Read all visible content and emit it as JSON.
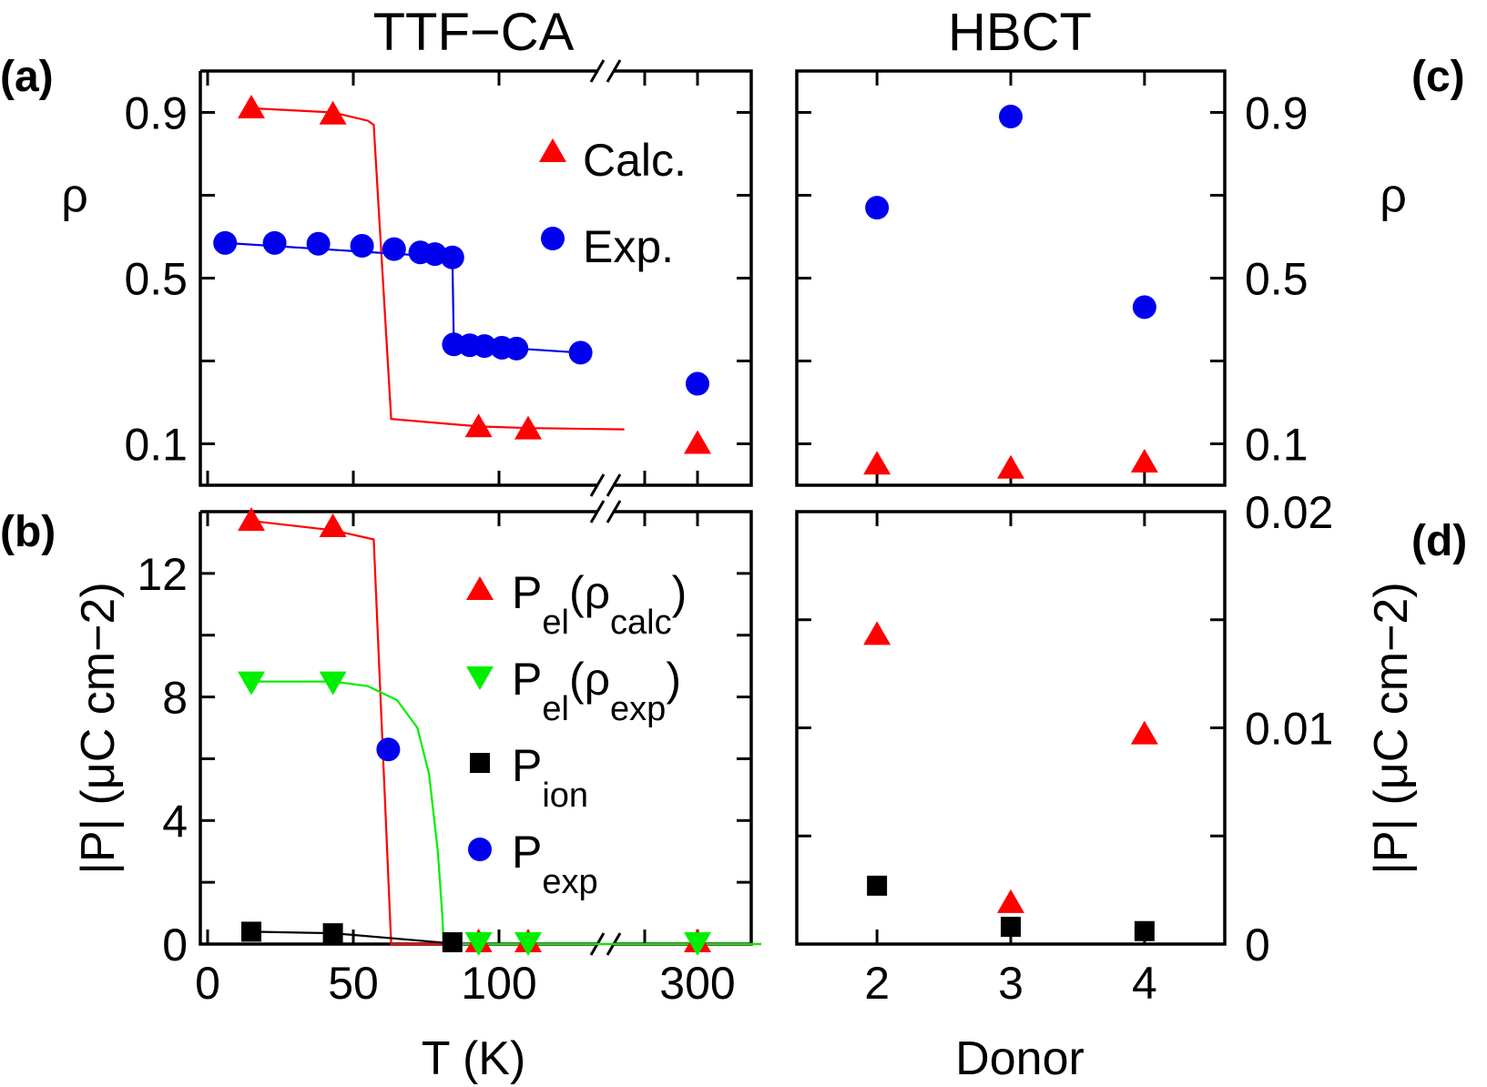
{
  "colors": {
    "red": "#ff0000",
    "blue": "#0000ee",
    "green": "#00ee00",
    "black": "#000000"
  },
  "chart_data": [
    {
      "id": "a",
      "panel_label": "(a)",
      "title": "TTF−CA",
      "type": "scatter",
      "ylabel": "ρ",
      "ylim": [
        0.0,
        1.0
      ],
      "y_ticks": [
        0.1,
        0.3,
        0.5,
        0.7,
        0.9
      ],
      "y_tick_labels": [
        "0.1",
        "0.5",
        "0.9"
      ],
      "x_ticks": [
        0,
        50,
        100,
        150
      ],
      "x_break": true,
      "x_after_break": 300,
      "legend": [
        {
          "name": "Calc.",
          "marker": "triangle-up",
          "color": "red"
        },
        {
          "name": "Exp.",
          "marker": "circle",
          "color": "blue"
        }
      ],
      "series": [
        {
          "name": "Calc.",
          "marker": "triangle-up",
          "color": "red",
          "points": [
            [
              15,
              0.91
            ],
            [
              43,
              0.895
            ],
            [
              93,
              0.14
            ],
            [
              110,
              0.135
            ]
          ],
          "after_break": [
            [
              300,
              0.1
            ]
          ]
        },
        {
          "name": "Exp.",
          "marker": "circle",
          "color": "blue",
          "points": [
            [
              6,
              0.585
            ],
            [
              23,
              0.585
            ],
            [
              38,
              0.583
            ],
            [
              53,
              0.578
            ],
            [
              64,
              0.57
            ],
            [
              73,
              0.562
            ],
            [
              78,
              0.558
            ],
            [
              84,
              0.55
            ],
            [
              84.5,
              0.34
            ],
            [
              90,
              0.338
            ],
            [
              95,
              0.336
            ],
            [
              101,
              0.332
            ],
            [
              106,
              0.33
            ],
            [
              128,
              0.32
            ]
          ],
          "after_break": [
            [
              300,
              0.245
            ]
          ]
        }
      ],
      "lines": [
        {
          "color": "red",
          "points": [
            [
              15,
              0.91
            ],
            [
              43,
              0.9
            ],
            [
              55,
              0.88
            ],
            [
              57,
              0.87
            ],
            [
              63,
              0.16
            ],
            [
              93,
              0.142
            ],
            [
              110,
              0.138
            ],
            [
              143,
              0.135
            ]
          ]
        },
        {
          "color": "blue",
          "points": [
            [
              6,
              0.585
            ],
            [
              84,
              0.55
            ],
            [
              84.5,
              0.34
            ],
            [
              128,
              0.32
            ]
          ]
        }
      ]
    },
    {
      "id": "c",
      "panel_label": "(c)",
      "title": "HBCT",
      "type": "scatter",
      "ylabel": "ρ",
      "ylim": [
        0.0,
        1.0
      ],
      "y_ticks": [
        0.1,
        0.3,
        0.5,
        0.7,
        0.9
      ],
      "y_tick_labels": [
        "0.1",
        "0.5",
        "0.9"
      ],
      "xlim": [
        1.4,
        4.6
      ],
      "x_ticks": [
        2,
        3,
        4
      ],
      "series": [
        {
          "name": "Calc.",
          "marker": "triangle-up",
          "color": "red",
          "points": [
            [
              2,
              0.05
            ],
            [
              3,
              0.04
            ],
            [
              4,
              0.055
            ]
          ]
        },
        {
          "name": "Exp.",
          "marker": "circle",
          "color": "blue",
          "points": [
            [
              2,
              0.67
            ],
            [
              3,
              0.89
            ],
            [
              4,
              0.43
            ]
          ]
        }
      ]
    },
    {
      "id": "b",
      "panel_label": "(b)",
      "type": "scatter",
      "xlabel": "T  (K)",
      "ylabel": "|P| (μC cm−2)",
      "ylim": [
        0,
        14
      ],
      "y_ticks": [
        0,
        2,
        4,
        6,
        8,
        10,
        12,
        14
      ],
      "y_tick_labels": [
        "0",
        "4",
        "8",
        "12"
      ],
      "x_ticks": [
        0,
        50,
        100,
        150
      ],
      "x_tick_labels": [
        "0",
        "50",
        "100"
      ],
      "x_break": true,
      "x_after_break": 300,
      "x_after_break_label": "300",
      "legend": [
        {
          "main": "P",
          "sub": "el",
          "rest": "(ρ",
          "sub2": "calc",
          "close": ")",
          "marker": "triangle-up",
          "color": "red"
        },
        {
          "main": "P",
          "sub": "el",
          "rest": "(ρ",
          "sub2": "exp",
          "close": ")",
          "marker": "triangle-down",
          "color": "green"
        },
        {
          "main": "P",
          "sub": "ion",
          "marker": "square",
          "color": "black"
        },
        {
          "main": "P",
          "sub": "exp",
          "marker": "circle",
          "color": "blue"
        }
      ],
      "series": [
        {
          "name": "Pel(ρcalc)",
          "marker": "triangle-up",
          "color": "red",
          "points": [
            [
              15,
              13.7
            ],
            [
              43,
              13.5
            ],
            [
              93,
              0.05
            ],
            [
              110,
              0.05
            ]
          ],
          "after_break": [
            [
              300,
              0.05
            ]
          ]
        },
        {
          "name": "Pel(ρexp)",
          "marker": "triangle-down",
          "color": "green",
          "points": [
            [
              15,
              8.5
            ],
            [
              43,
              8.5
            ],
            [
              93,
              0.0
            ],
            [
              110,
              0.0
            ]
          ],
          "after_break": [
            [
              300,
              0.0
            ]
          ]
        },
        {
          "name": "Pion",
          "marker": "square",
          "color": "black",
          "points": [
            [
              15,
              0.4
            ],
            [
              43,
              0.35
            ],
            [
              84,
              0.0
            ]
          ]
        },
        {
          "name": "Pexp",
          "marker": "circle",
          "color": "blue",
          "points": [
            [
              62,
              6.3
            ]
          ]
        }
      ],
      "lines": [
        {
          "color": "red",
          "points": [
            [
              15,
              13.7
            ],
            [
              43,
              13.4
            ],
            [
              57,
              13.1
            ],
            [
              63,
              0.0
            ],
            [
              190,
              0.0
            ]
          ]
        },
        {
          "color": "green",
          "points": [
            [
              15,
              8.5
            ],
            [
              43,
              8.5
            ],
            [
              55,
              8.35
            ],
            [
              65,
              7.9
            ],
            [
              72,
              7.0
            ],
            [
              76,
              5.5
            ],
            [
              79,
              3.0
            ],
            [
              80.5,
              1.0
            ],
            [
              81,
              0.0
            ],
            [
              190,
              0.0
            ]
          ]
        },
        {
          "color": "black",
          "points": [
            [
              15,
              0.4
            ],
            [
              43,
              0.35
            ],
            [
              84,
              0.02
            ]
          ]
        }
      ]
    },
    {
      "id": "d",
      "panel_label": "(d)",
      "type": "scatter",
      "xlabel": "Donor",
      "ylabel": "|P| (μC cm−2)",
      "ylim": [
        0,
        0.02
      ],
      "y_ticks": [
        0,
        0.005,
        0.01,
        0.015,
        0.02
      ],
      "y_tick_labels": [
        "0",
        "0.01",
        "0.02"
      ],
      "xlim": [
        1.4,
        4.6
      ],
      "x_ticks": [
        2,
        3,
        4
      ],
      "x_tick_labels": [
        "2",
        "3",
        "4"
      ],
      "series": [
        {
          "name": "Pel",
          "marker": "triangle-up",
          "color": "red",
          "points": [
            [
              2,
              0.0143
            ],
            [
              3,
              0.0019
            ],
            [
              4,
              0.0097
            ]
          ]
        },
        {
          "name": "Pion",
          "marker": "square",
          "color": "black",
          "points": [
            [
              2,
              0.0027
            ],
            [
              3,
              0.0008
            ],
            [
              4,
              0.0006
            ]
          ]
        }
      ]
    }
  ]
}
